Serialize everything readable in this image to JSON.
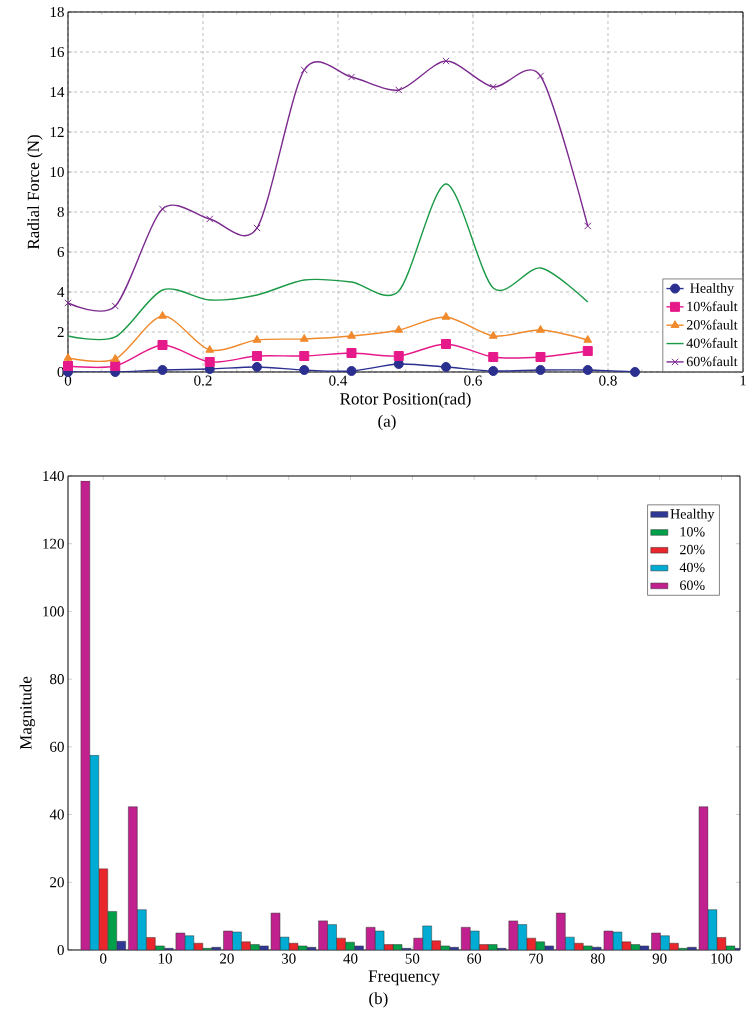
{
  "chart_data": [
    {
      "type": "line",
      "xlabel": "Rotor Position(rad)",
      "ylabel": "Radial Force (N)",
      "annotations": [
        "(a)"
      ],
      "x": [
        0,
        0.07,
        0.14,
        0.21,
        0.28,
        0.35,
        0.42,
        0.49,
        0.56,
        0.63,
        0.7,
        0.77,
        0.84
      ],
      "xlim": [
        0,
        1
      ],
      "xticks": [
        0,
        0.2,
        0.4,
        0.6,
        0.8,
        1
      ],
      "ylim": [
        0,
        18
      ],
      "yticks": [
        0,
        2,
        4,
        6,
        8,
        10,
        12,
        14,
        16,
        18
      ],
      "grid": true,
      "legend": "bottom right",
      "series": [
        {
          "name": "Healthy",
          "color": "#2b2f8f",
          "marker": "circle",
          "values": [
            0.0,
            0.0,
            0.1,
            0.15,
            0.25,
            0.1,
            0.05,
            0.4,
            0.25,
            0.05,
            0.1,
            0.1,
            0.0
          ]
        },
        {
          "name": "10%fault",
          "color": "#e6198a",
          "marker": "square",
          "values": [
            0.3,
            0.3,
            1.35,
            0.5,
            0.8,
            0.8,
            0.95,
            0.8,
            1.4,
            0.75,
            0.75,
            1.05,
            null
          ]
        },
        {
          "name": "20%fault",
          "color": "#f08a2c",
          "marker": "triangle",
          "values": [
            0.7,
            0.65,
            2.8,
            1.1,
            1.6,
            1.65,
            1.8,
            2.1,
            2.75,
            1.8,
            2.1,
            1.6,
            null
          ]
        },
        {
          "name": "40%fault",
          "color": "#1a9a46",
          "marker": "none",
          "values": [
            1.8,
            1.75,
            4.1,
            3.6,
            3.85,
            4.6,
            4.5,
            4.05,
            9.4,
            4.2,
            5.2,
            3.5,
            null
          ]
        },
        {
          "name": "60%fault",
          "color": "#7b2a8e",
          "marker": "cross",
          "values": [
            3.45,
            3.3,
            8.15,
            7.65,
            7.2,
            15.1,
            14.75,
            14.1,
            15.55,
            14.25,
            14.8,
            7.3,
            null
          ]
        }
      ]
    },
    {
      "type": "bar",
      "xlabel": "Frequency",
      "ylabel": "Magnitude",
      "annotations": [
        "(b)"
      ],
      "x": [
        0,
        7.69,
        15.38,
        23.08,
        30.77,
        38.46,
        46.15,
        53.85,
        61.54,
        69.23,
        76.92,
        84.62,
        92.31,
        100
      ],
      "xlim": [
        -5.7,
        103
      ],
      "xticks": [
        0,
        10,
        20,
        30,
        40,
        50,
        60,
        70,
        80,
        90,
        100
      ],
      "ylim": [
        0,
        140
      ],
      "yticks": [
        0,
        20,
        40,
        60,
        80,
        100,
        120,
        140
      ],
      "grid": false,
      "legend": "top right",
      "series": [
        {
          "name": "Healthy",
          "color": "#303895",
          "values": [
            2.6,
            0.5,
            0.8,
            1.2,
            0.8,
            1.2,
            0.5,
            0.8,
            0.5,
            1.2,
            0.8,
            1.2,
            0.8,
            0.5
          ]
        },
        {
          "name": "10%",
          "color": "#00a04a",
          "values": [
            11.4,
            1.2,
            0.5,
            1.6,
            1.2,
            2.3,
            1.6,
            1.2,
            1.6,
            2.4,
            1.2,
            1.6,
            0.5,
            1.2
          ]
        },
        {
          "name": "20%",
          "color": "#e8262b",
          "values": [
            24,
            3.7,
            2.0,
            2.4,
            2.0,
            3.5,
            1.6,
            2.7,
            1.6,
            3.5,
            2.0,
            2.4,
            2.0,
            3.7
          ]
        },
        {
          "name": "40%",
          "color": "#00acd4",
          "values": [
            57.5,
            11.9,
            4.2,
            5.3,
            3.8,
            7.5,
            5.6,
            7.1,
            5.6,
            7.5,
            3.8,
            5.3,
            4.2,
            11.9
          ]
        },
        {
          "name": "60%",
          "color": "#c0218e",
          "values": [
            138.5,
            42.3,
            5.0,
            5.6,
            10.9,
            8.6,
            6.7,
            3.5,
            6.7,
            8.6,
            10.9,
            5.6,
            5.0,
            42.3
          ]
        }
      ]
    }
  ]
}
